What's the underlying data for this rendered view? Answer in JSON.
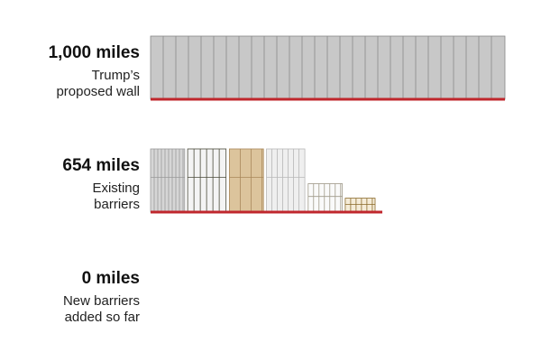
{
  "chart_data": {
    "type": "bar",
    "categories": [
      "Trump’s proposed wall",
      "Existing barriers",
      "New barriers added so far"
    ],
    "values": [
      1000,
      654,
      0
    ],
    "value_labels": [
      "1,000 miles",
      "654 miles",
      "0 miles"
    ],
    "xlim": [
      0,
      1000
    ],
    "color": "#c8c8c8",
    "baseline_color": "#c0272d"
  }
}
